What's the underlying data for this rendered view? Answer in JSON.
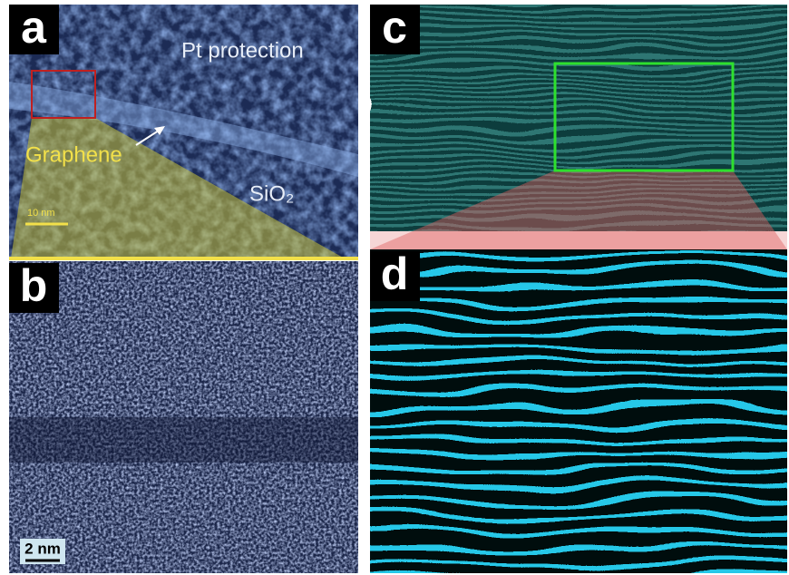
{
  "panels": [
    {
      "label": "a",
      "annotations": [
        "Pt protection",
        "Graphene",
        "SiO₂"
      ],
      "scale_bar": "10 nm"
    },
    {
      "label": "b",
      "scale_bar": "2 nm"
    },
    {
      "label": "c"
    },
    {
      "label": "d"
    }
  ]
}
